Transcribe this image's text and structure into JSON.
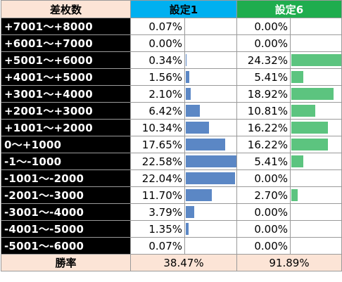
{
  "header": {
    "label_col": "差枚数",
    "setting1": "設定1",
    "setting6": "設定6"
  },
  "chart_data": {
    "type": "table",
    "bar_max_percent": 22.58,
    "rows": [
      {
        "label": "+7001～+8000",
        "s1": "0.07%",
        "s1_val": 0.07,
        "s6": "0.00%",
        "s6_val": 0.0
      },
      {
        "label": "+6001～+7000",
        "s1": "0.00%",
        "s1_val": 0.0,
        "s6": "0.00%",
        "s6_val": 0.0
      },
      {
        "label": "+5001～+6000",
        "s1": "0.34%",
        "s1_val": 0.34,
        "s6": "24.32%",
        "s6_val": 24.32
      },
      {
        "label": "+4001～+5000",
        "s1": "1.56%",
        "s1_val": 1.56,
        "s6": "5.41%",
        "s6_val": 5.41
      },
      {
        "label": "+3001～+4000",
        "s1": "2.10%",
        "s1_val": 2.1,
        "s6": "18.92%",
        "s6_val": 18.92
      },
      {
        "label": "+2001～+3000",
        "s1": "6.42%",
        "s1_val": 6.42,
        "s6": "10.81%",
        "s6_val": 10.81
      },
      {
        "label": "+1001～+2000",
        "s1": "10.34%",
        "s1_val": 10.34,
        "s6": "16.22%",
        "s6_val": 16.22
      },
      {
        "label": "0～+1000",
        "s1": "17.65%",
        "s1_val": 17.65,
        "s6": "16.22%",
        "s6_val": 16.22
      },
      {
        "label": "-1～-1000",
        "s1": "22.58%",
        "s1_val": 22.58,
        "s6": "5.41%",
        "s6_val": 5.41
      },
      {
        "label": "-1001～-2000",
        "s1": "22.04%",
        "s1_val": 22.04,
        "s6": "0.00%",
        "s6_val": 0.0
      },
      {
        "label": "-2001～-3000",
        "s1": "11.70%",
        "s1_val": 11.7,
        "s6": "2.70%",
        "s6_val": 2.7
      },
      {
        "label": "-3001～-4000",
        "s1": "3.79%",
        "s1_val": 3.79,
        "s6": "0.00%",
        "s6_val": 0.0
      },
      {
        "label": "-4001～-5000",
        "s1": "1.35%",
        "s1_val": 1.35,
        "s6": "0.00%",
        "s6_val": 0.0
      },
      {
        "label": "-5001～-6000",
        "s1": "0.07%",
        "s1_val": 0.07,
        "s6": "0.00%",
        "s6_val": 0.0
      }
    ],
    "footer": {
      "label": "勝率",
      "s1": "38.47%",
      "s6": "91.89%"
    },
    "colors": {
      "setting1_bar": "#5b87c5",
      "setting6_bar": "#5cc47f",
      "setting1_header": "#00b0f0",
      "setting6_header": "#1fad4e",
      "label_bg": "#000000",
      "footer_bg": "#fce4d6"
    }
  }
}
